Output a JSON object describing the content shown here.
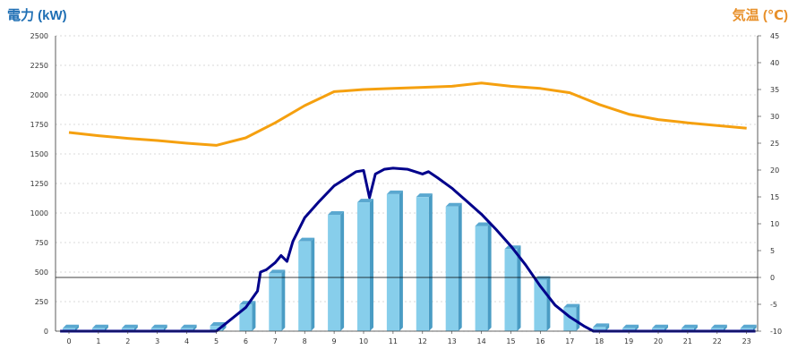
{
  "chart_data": {
    "type": "bar",
    "title_left": "電力 (kW)",
    "title_right": "気温 (℃)",
    "x": [
      "0",
      "1",
      "2",
      "3",
      "4",
      "5",
      "6",
      "7",
      "8",
      "9",
      "10",
      "11",
      "12",
      "13",
      "14",
      "15",
      "16",
      "17",
      "18",
      "19",
      "20",
      "21",
      "22",
      "23"
    ],
    "y_left_ticks": [
      "0",
      "250",
      "500",
      "750",
      "1000",
      "1250",
      "1500",
      "1750",
      "2000",
      "2250",
      "2500"
    ],
    "y_right_ticks": [
      "-10",
      "-5",
      "0",
      "5",
      "10",
      "15",
      "20",
      "25",
      "30",
      "35",
      "40",
      "45"
    ],
    "ylim_left": [
      0,
      2500
    ],
    "ylim_right": [
      -10,
      45
    ],
    "grid": true,
    "colors": {
      "bar": "#87ceeb",
      "bar_dark": "#4a9cc4",
      "temperature": "#f5a00f",
      "power": "#00008b",
      "title_left": "#1f6fb4",
      "title_right": "#e8902a"
    },
    "series": [
      {
        "type": "bar",
        "axis": "left",
        "values": [
          25,
          25,
          25,
          25,
          25,
          45,
          225,
          490,
          760,
          985,
          1090,
          1160,
          1135,
          1055,
          890,
          695,
          435,
          200,
          35,
          25,
          25,
          25,
          25,
          25
        ]
      },
      {
        "type": "line",
        "axis": "right",
        "values": [
          27,
          26.4,
          25.9,
          25.5,
          25,
          24.6,
          26,
          28.8,
          32,
          34.6,
          35,
          35.2,
          35.4,
          35.6,
          36.2,
          35.6,
          35.2,
          34.4,
          32.2,
          30.4,
          29.4,
          28.8,
          28.3,
          27.8
        ]
      },
      {
        "type": "line",
        "axis": "left",
        "points": [
          [
            -0.3,
            0
          ],
          [
            5,
            0
          ],
          [
            5.5,
            100
          ],
          [
            6,
            200
          ],
          [
            6.4,
            340
          ],
          [
            6.5,
            500
          ],
          [
            6.7,
            520
          ],
          [
            7,
            580
          ],
          [
            7.2,
            640
          ],
          [
            7.4,
            590
          ],
          [
            7.6,
            760
          ],
          [
            8,
            960
          ],
          [
            8.5,
            1100
          ],
          [
            9,
            1230
          ],
          [
            9.5,
            1310
          ],
          [
            9.75,
            1350
          ],
          [
            10,
            1360
          ],
          [
            10.2,
            1130
          ],
          [
            10.4,
            1330
          ],
          [
            10.7,
            1370
          ],
          [
            11,
            1380
          ],
          [
            11.5,
            1370
          ],
          [
            12,
            1330
          ],
          [
            12.2,
            1350
          ],
          [
            12.5,
            1300
          ],
          [
            13,
            1210
          ],
          [
            13.5,
            1100
          ],
          [
            14,
            990
          ],
          [
            14.5,
            860
          ],
          [
            15,
            720
          ],
          [
            15.5,
            560
          ],
          [
            16,
            380
          ],
          [
            16.5,
            220
          ],
          [
            17,
            120
          ],
          [
            17.5,
            40
          ],
          [
            17.8,
            0
          ],
          [
            23.3,
            0
          ]
        ]
      }
    ]
  }
}
